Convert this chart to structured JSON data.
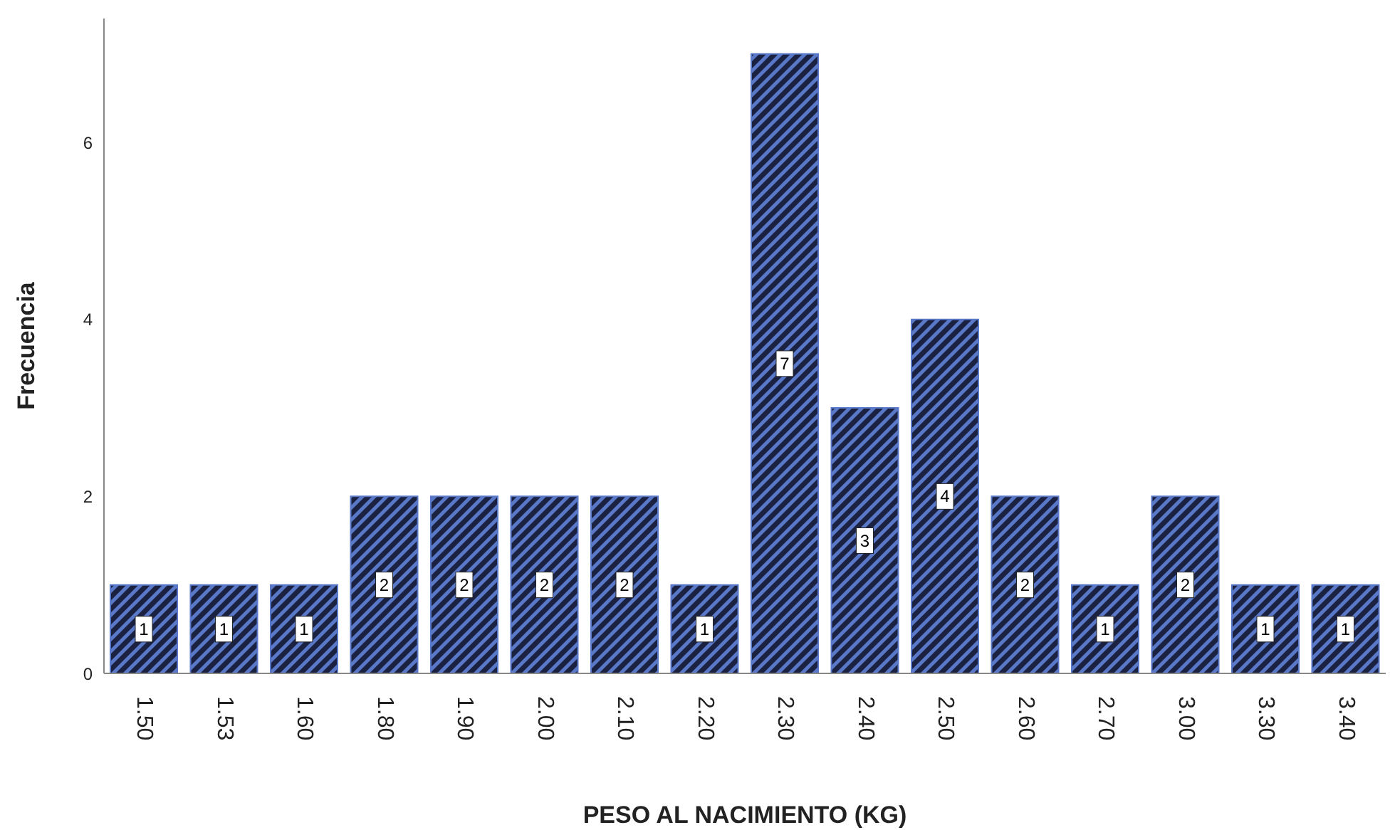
{
  "chart_data": {
    "type": "bar",
    "xlabel": "PESO AL NACIMIENTO (KG)",
    "ylabel": "Frecuencia",
    "categories": [
      "1.50",
      "1.53",
      "1.60",
      "1.80",
      "1.90",
      "2.00",
      "2.10",
      "2.20",
      "2.30",
      "2.40",
      "2.50",
      "2.60",
      "2.70",
      "3.00",
      "3.30",
      "3.40"
    ],
    "values": [
      1,
      1,
      1,
      2,
      2,
      2,
      2,
      1,
      7,
      3,
      4,
      2,
      1,
      2,
      1,
      1
    ],
    "color": "#5a78c8",
    "ylim": [
      0,
      7.4
    ],
    "yticks": [
      0,
      2,
      4,
      6
    ],
    "grid": false,
    "data_labels": true,
    "legend": false
  }
}
